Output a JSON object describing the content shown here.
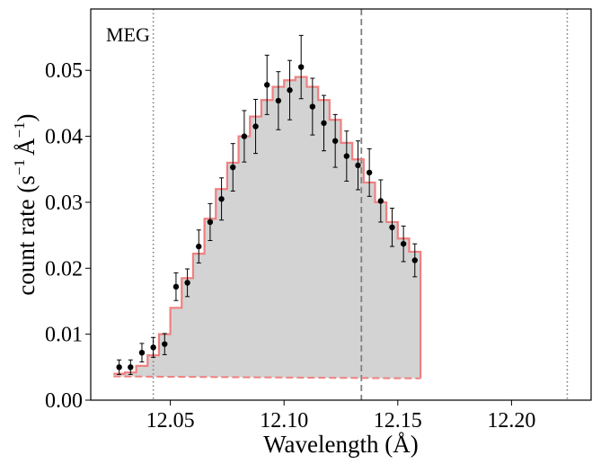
{
  "chart_data": {
    "type": "scatter",
    "annotation": "MEG",
    "xlabel": "Wavelength (Å)",
    "ylabel": {
      "prefix": "count rate (s",
      "exp1": "−1",
      "unit": "Å",
      "exp2": "−1",
      "suffix": ")"
    },
    "xlim": [
      12.015,
      12.235
    ],
    "ylim": [
      0.0,
      0.0593
    ],
    "x_ticks": [
      12.05,
      12.1,
      12.15,
      12.2
    ],
    "x_tick_labels": [
      "12.05",
      "12.10",
      "12.15",
      "12.20"
    ],
    "y_ticks": [
      0.0,
      0.01,
      0.02,
      0.03,
      0.04,
      0.05
    ],
    "y_tick_labels": [
      "0.00",
      "0.01",
      "0.02",
      "0.03",
      "0.04",
      "0.05"
    ],
    "colors": {
      "model": "#f08080",
      "fill": "#d3d3d3",
      "points": "#000000",
      "vlines": "#808080"
    },
    "vertical_lines": [
      {
        "x": 12.0425,
        "style": "dotted"
      },
      {
        "x": 12.134,
        "style": "dashed"
      },
      {
        "x": 12.2245,
        "style": "dotted"
      }
    ],
    "bin_width": 0.005,
    "data": {
      "x": [
        12.0275,
        12.0325,
        12.0375,
        12.0425,
        12.0475,
        12.0525,
        12.0575,
        12.0625,
        12.0675,
        12.0725,
        12.0775,
        12.0825,
        12.0875,
        12.0925,
        12.0975,
        12.1025,
        12.1075,
        12.1125,
        12.1175,
        12.1225,
        12.1275,
        12.1325,
        12.1375,
        12.1425,
        12.1475,
        12.1525,
        12.1575
      ],
      "y": [
        0.005,
        0.005,
        0.0072,
        0.008,
        0.0085,
        0.0172,
        0.0178,
        0.0233,
        0.027,
        0.0305,
        0.0353,
        0.04,
        0.0415,
        0.0478,
        0.0454,
        0.047,
        0.0505,
        0.0445,
        0.042,
        0.0393,
        0.037,
        0.0356,
        0.0345,
        0.0302,
        0.0262,
        0.0237,
        0.0212
      ],
      "yerr": [
        0.0011,
        0.0011,
        0.0014,
        0.0015,
        0.0016,
        0.0021,
        0.0021,
        0.0025,
        0.0028,
        0.0032,
        0.0036,
        0.0039,
        0.0041,
        0.0045,
        0.0044,
        0.0045,
        0.0048,
        0.0043,
        0.0042,
        0.004,
        0.0038,
        0.0037,
        0.0036,
        0.0032,
        0.0029,
        0.0027,
        0.0025
      ]
    },
    "model": {
      "y": [
        0.004,
        0.0042,
        0.0052,
        0.0068,
        0.01,
        0.014,
        0.0185,
        0.0222,
        0.0275,
        0.032,
        0.036,
        0.04,
        0.043,
        0.0455,
        0.0475,
        0.0485,
        0.049,
        0.0475,
        0.0455,
        0.0425,
        0.039,
        0.0365,
        0.033,
        0.03,
        0.027,
        0.0245,
        0.0225
      ]
    },
    "continuum": {
      "x": [
        12.025,
        12.16
      ],
      "y": [
        0.0036,
        0.0033
      ]
    }
  }
}
